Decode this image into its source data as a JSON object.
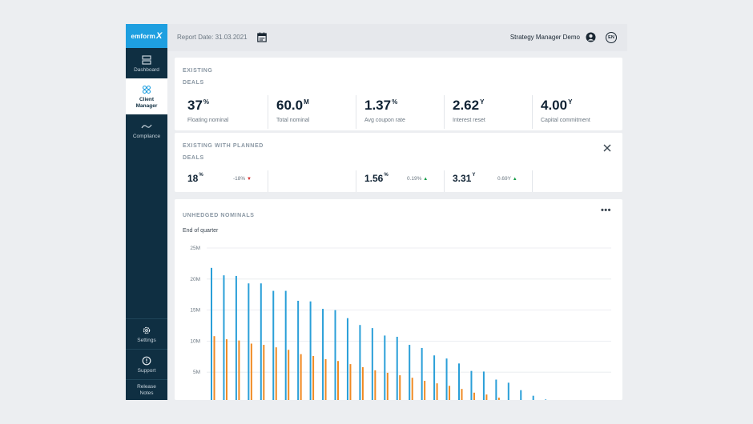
{
  "sidebar": {
    "logo": "emform",
    "logo_x": "X",
    "items": [
      {
        "label": "Dashboard",
        "icon": "dashboard-icon"
      },
      {
        "label": "Client Manager",
        "icon": "client-manager-icon"
      },
      {
        "label": "Compliance",
        "icon": "compliance-icon"
      }
    ],
    "bottom": [
      {
        "label": "Settings",
        "icon": "gear-icon"
      },
      {
        "label": "Support",
        "icon": "support-icon"
      },
      {
        "label": "Release Notes"
      }
    ]
  },
  "topbar": {
    "report_date": "Report Date: 31.03.2021",
    "user": "Strategy Manager Demo",
    "lang": "EN"
  },
  "existing": {
    "title_line1": "EXISTING",
    "title_line2": "DEALS",
    "kpis": [
      {
        "value": "37",
        "unit": "%",
        "label": "Floating nominal"
      },
      {
        "value": "60.0",
        "unit": "M",
        "label": "Total nominal"
      },
      {
        "value": "1.37",
        "unit": "%",
        "label": "Avg coupon rate"
      },
      {
        "value": "2.62",
        "unit": "Y",
        "label": "Interest reset"
      },
      {
        "value": "4.00",
        "unit": "Y",
        "label": "Capital commitment"
      }
    ]
  },
  "planned": {
    "title_line1": "EXISTING WITH PLANNED",
    "title_line2": "DEALS",
    "cells": [
      {
        "value": "18",
        "unit": "%",
        "delta": "-18%",
        "dir": "down"
      },
      {
        "value": "",
        "unit": "",
        "delta": "",
        "dir": ""
      },
      {
        "value": "1.56",
        "unit": "%",
        "delta": "0.19%",
        "dir": "up"
      },
      {
        "value": "3.31",
        "unit": "Y",
        "delta": "0.69Y",
        "dir": "up"
      },
      {
        "value": "",
        "unit": "",
        "delta": "",
        "dir": ""
      }
    ]
  },
  "chart_card": {
    "title": "UNHEDGED NOMINALS",
    "subtitle": "End of quarter",
    "more": "•••"
  },
  "colors": {
    "sidebar": "#0f2f42",
    "accent": "#1e9fe0",
    "series_blue": "#2a9fd8",
    "series_orange": "#f08a24"
  },
  "chart_data": {
    "type": "bar",
    "y_ticks": [
      "25M",
      "20M",
      "15M",
      "10M",
      "5M"
    ],
    "ylim": [
      0,
      25
    ],
    "grid": true,
    "series": [
      {
        "values": [
          21.8,
          20.6,
          20.5,
          19.3,
          19.3,
          18.1,
          18.1,
          16.5,
          16.4,
          15.2,
          15.0,
          13.7,
          12.6,
          12.1,
          10.9,
          10.7,
          9.4,
          8.9,
          7.7,
          7.2,
          6.4,
          5.2,
          5.1,
          3.8,
          3.3,
          2.1,
          1.2,
          0.6
        ]
      },
      {
        "values": [
          10.8,
          10.3,
          10.1,
          9.6,
          9.4,
          9.0,
          8.6,
          7.9,
          7.6,
          7.1,
          6.8,
          6.3,
          5.8,
          5.3,
          4.9,
          4.5,
          4.1,
          3.6,
          3.2,
          2.8,
          2.3,
          1.7,
          1.4,
          0.9
        ]
      }
    ]
  }
}
